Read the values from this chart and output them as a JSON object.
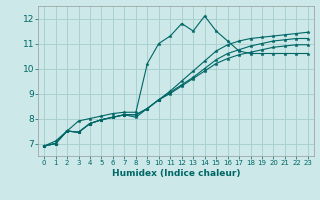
{
  "xlabel": "Humidex (Indice chaleur)",
  "bg_color": "#cce8e8",
  "grid_color": "#aad0d0",
  "line_color": "#006666",
  "xlim": [
    -0.5,
    23.5
  ],
  "ylim": [
    6.5,
    12.5
  ],
  "xticks": [
    0,
    1,
    2,
    3,
    4,
    5,
    6,
    7,
    8,
    9,
    10,
    11,
    12,
    13,
    14,
    15,
    16,
    17,
    18,
    19,
    20,
    21,
    22,
    23
  ],
  "yticks": [
    7,
    8,
    9,
    10,
    11,
    12
  ],
  "series": [
    [
      6.9,
      7.1,
      7.5,
      7.9,
      8.0,
      8.1,
      8.2,
      8.25,
      8.25,
      10.2,
      11.0,
      11.3,
      11.8,
      11.5,
      12.1,
      11.5,
      11.1,
      10.7,
      10.6,
      10.6,
      10.6,
      10.6,
      10.6,
      10.6
    ],
    [
      6.9,
      7.0,
      7.5,
      7.45,
      7.8,
      7.95,
      8.05,
      8.15,
      8.15,
      8.4,
      8.75,
      9.1,
      9.5,
      9.9,
      10.3,
      10.7,
      10.95,
      11.1,
      11.2,
      11.25,
      11.3,
      11.35,
      11.4,
      11.45
    ],
    [
      6.9,
      7.0,
      7.5,
      7.45,
      7.8,
      7.95,
      8.05,
      8.15,
      8.15,
      8.4,
      8.75,
      9.05,
      9.35,
      9.65,
      10.0,
      10.35,
      10.6,
      10.75,
      10.9,
      11.0,
      11.1,
      11.15,
      11.2,
      11.2
    ],
    [
      6.9,
      7.0,
      7.5,
      7.45,
      7.8,
      7.95,
      8.05,
      8.15,
      8.05,
      8.4,
      8.75,
      9.0,
      9.3,
      9.6,
      9.9,
      10.2,
      10.4,
      10.55,
      10.65,
      10.75,
      10.85,
      10.9,
      10.95,
      10.95
    ]
  ]
}
